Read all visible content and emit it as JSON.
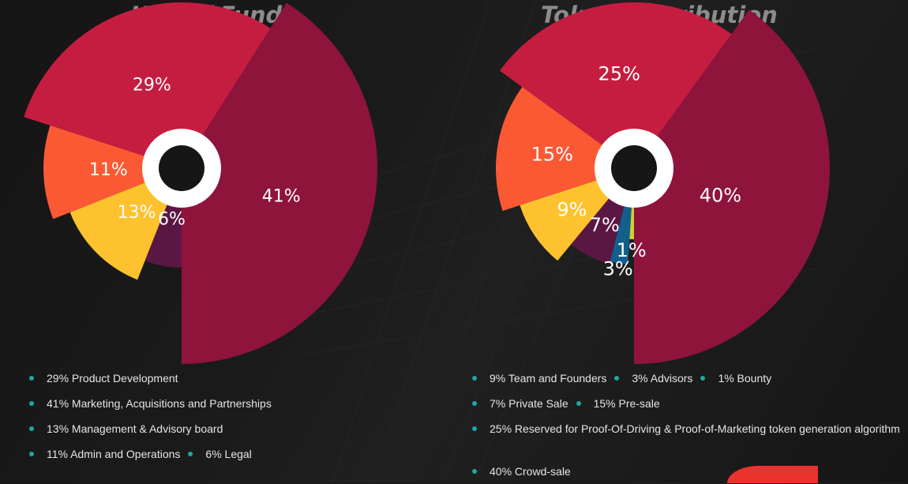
{
  "chart_data": [
    {
      "type": "pie",
      "title": "Use of Fund",
      "slices": [
        {
          "label": "41%",
          "value": 41,
          "color": "#8e143c"
        },
        {
          "label": "29%",
          "value": 29,
          "color": "#c51d40"
        },
        {
          "label": "11%",
          "value": 11,
          "color": "#fb5934"
        },
        {
          "label": "13%",
          "value": 13,
          "color": "#fdc22d"
        },
        {
          "label": "6%",
          "value": 6,
          "color": "#5b1744"
        }
      ],
      "legend": [
        [
          "29% Product Development"
        ],
        [
          "41% Marketing, Acquisitions and Partnerships"
        ],
        [
          "13% Management & Advisory board"
        ],
        [
          "11% Admin and Operations",
          "6% Legal"
        ]
      ]
    },
    {
      "type": "pie",
      "title": "Token Distribution",
      "slices": [
        {
          "label": "40%",
          "value": 40,
          "color": "#8e143c"
        },
        {
          "label": "25%",
          "value": 25,
          "color": "#c51d40"
        },
        {
          "label": "15%",
          "value": 15,
          "color": "#fb5934"
        },
        {
          "label": "9%",
          "value": 9,
          "color": "#fdc22d"
        },
        {
          "label": "7%",
          "value": 7,
          "color": "#5b1744"
        },
        {
          "label": "3%",
          "value": 3,
          "color": "#125f8c"
        },
        {
          "label": "1%",
          "value": 1,
          "color": "#cfcf2e"
        }
      ],
      "legend": [
        [
          "9% Team and Founders",
          "3% Advisors",
          "1% Bounty"
        ],
        [
          "7% Private Sale",
          "15% Pre-sale"
        ],
        [
          "25% Reserved for Proof-Of-Driving & Proof-of-Marketing token generation algorithm"
        ],
        [
          "40% Crowd-sale"
        ]
      ]
    }
  ],
  "colors": {
    "legend_dot": "#1fa7a3",
    "accent_corner": "#e8332e",
    "title": "#8c8c8c"
  }
}
